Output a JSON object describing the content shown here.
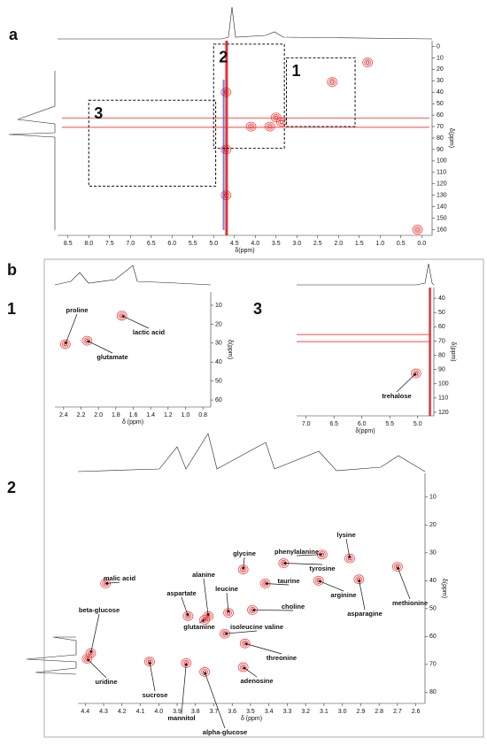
{
  "figure": {
    "panel_a": {
      "label": "a",
      "xlabel": "δ(ppm)",
      "ylabel": "δ(ppm)",
      "xlim": [
        8.75,
        -0.25
      ],
      "ylim": [
        -5,
        165
      ],
      "xticks": [
        8.5,
        {
          "value": 8,
          "label": "8.0"
        },
        7.5,
        {
          "value": 7,
          "label": "7.0"
        },
        6.5,
        {
          "value": 6,
          "label": "6.0"
        },
        5.5,
        {
          "value": 5,
          "label": "5.0"
        },
        4.5,
        {
          "value": 4,
          "label": "4.0"
        },
        3.5,
        {
          "value": 3,
          "label": "3.0"
        },
        2.5,
        {
          "value": 2,
          "label": "2.0"
        },
        1.5,
        {
          "value": 1,
          "label": "1.0"
        },
        0.5,
        {
          "value": 0,
          "label": "0.0"
        }
      ],
      "yticks": [
        0,
        10,
        20,
        30,
        40,
        50,
        60,
        70,
        80,
        90,
        100,
        110,
        120,
        130,
        140,
        150,
        160
      ],
      "boxes": [
        {
          "label": "1",
          "x": [
            3.25,
            1.6
          ],
          "y": [
            10,
            70
          ]
        },
        {
          "label": "2",
          "x": [
            5.0,
            3.3
          ],
          "y": [
            -2,
            89
          ]
        },
        {
          "label": "3",
          "x": [
            8.0,
            4.95
          ],
          "y": [
            47,
            122
          ]
        }
      ],
      "peaks": [
        {
          "x": 1.3,
          "y": 14
        },
        {
          "x": 2.15,
          "y": 31
        },
        {
          "x": 3.37,
          "y": 66
        },
        {
          "x": 3.65,
          "y": 70
        },
        {
          "x": 3.5,
          "y": 62
        },
        {
          "x": 4.1,
          "y": 70
        },
        {
          "x": 4.7,
          "y": 40
        },
        {
          "x": 4.7,
          "y": 90
        },
        {
          "x": 4.7,
          "y": 130
        },
        {
          "x": 0.1,
          "y": 160
        }
      ]
    },
    "panel_b": {
      "label": "b",
      "sub1": {
        "label": "1",
        "xlabel": "δ (ppm)",
        "ylabel": "δ(ppm)",
        "xlim": [
          2.5,
          0.71
        ],
        "ylim": [
          3,
          63.7
        ],
        "xticks": [
          2.4,
          2.2,
          {
            "value": 2,
            "label": "2.0"
          },
          1.8,
          1.6,
          1.4,
          1.2,
          {
            "value": 1,
            "label": "1.0"
          },
          0.8
        ],
        "yticks": [
          10,
          20,
          30,
          40,
          50,
          60
        ],
        "peaks": [
          {
            "text": "proline",
            "x": 2.38,
            "y": 30.6
          },
          {
            "text": "glutamate",
            "x": 2.13,
            "y": 28.7
          },
          {
            "text": "lactic acid",
            "x": 1.73,
            "y": 15.5
          }
        ]
      },
      "sub3": {
        "label": "3",
        "xlabel": "δ(ppm)",
        "ylabel": "δ(ppm)",
        "xlim": [
          7.17,
          4.71
        ],
        "ylim": [
          32.5,
          122.5
        ],
        "xticks": [
          {
            "value": 7,
            "label": "7.0"
          },
          6.5,
          {
            "value": 6,
            "label": "6.0"
          },
          5.5,
          {
            "value": 5,
            "label": "5.0"
          }
        ],
        "yticks": [
          40,
          50,
          60,
          70,
          80,
          90,
          100,
          110,
          120
        ],
        "peaks": [
          {
            "text": "trehalose",
            "x": 5.03,
            "y": 92.7
          }
        ]
      },
      "sub2": {
        "label": "2",
        "xlabel": "δ (ppm)",
        "ylabel": "δ(ppm)",
        "xlim": [
          4.44,
          2.55
        ],
        "ylim": [
          1.5,
          84
        ],
        "xticks": [
          4.4,
          4.3,
          4.2,
          4.1,
          {
            "value": 4,
            "label": "4.0"
          },
          3.9,
          3.8,
          3.7,
          3.6,
          3.5,
          3.4,
          3.3,
          3.2,
          3.1,
          {
            "value": 3,
            "label": "3.0"
          },
          2.9,
          2.8,
          2.7,
          2.6
        ],
        "yticks": [
          10,
          20,
          30,
          40,
          50,
          60,
          70,
          80
        ],
        "peaks": [
          {
            "text": "methionine",
            "x": 2.7,
            "y": 35
          },
          {
            "text": "lysine",
            "x": 2.96,
            "y": 32
          },
          {
            "text": "phenylalanine",
            "x": 3.11,
            "y": 30.6
          },
          {
            "text": "tyrosine",
            "x": 3.32,
            "y": 33.7
          },
          {
            "text": "glycine",
            "x": 3.54,
            "y": 36
          },
          {
            "text": "taurine",
            "x": 3.42,
            "y": 41
          },
          {
            "text": "arginine",
            "x": 3.13,
            "y": 40
          },
          {
            "text": "asparagine",
            "x": 2.91,
            "y": 39.5
          },
          {
            "text": "choline",
            "x": 3.49,
            "y": 50.5
          },
          {
            "text": "alanine",
            "x": 3.73,
            "y": 52.7
          },
          {
            "text": "leucine",
            "x": 3.62,
            "y": 51.5
          },
          {
            "text": "aspartate",
            "x": 3.84,
            "y": 52.7
          },
          {
            "text": "malic acid",
            "x": 4.29,
            "y": 41
          },
          {
            "text": "beta-glucose",
            "x": 4.37,
            "y": 66
          },
          {
            "text": "glutamine",
            "x": 3.75,
            "y": 54
          },
          {
            "text": "isoleucine valine",
            "x": 3.64,
            "y": 59
          },
          {
            "text": "threonine",
            "x": 3.53,
            "y": 62.5
          },
          {
            "text": "adenosine",
            "x": 3.54,
            "y": 71
          },
          {
            "text": "uridine",
            "x": 4.39,
            "y": 68
          },
          {
            "text": "sucrose",
            "x": 4.05,
            "y": 69
          },
          {
            "text": "mannitol",
            "x": 3.85,
            "y": 69.5
          },
          {
            "text": "alpha-glucose",
            "x": 3.75,
            "y": 72.7
          }
        ]
      }
    }
  }
}
